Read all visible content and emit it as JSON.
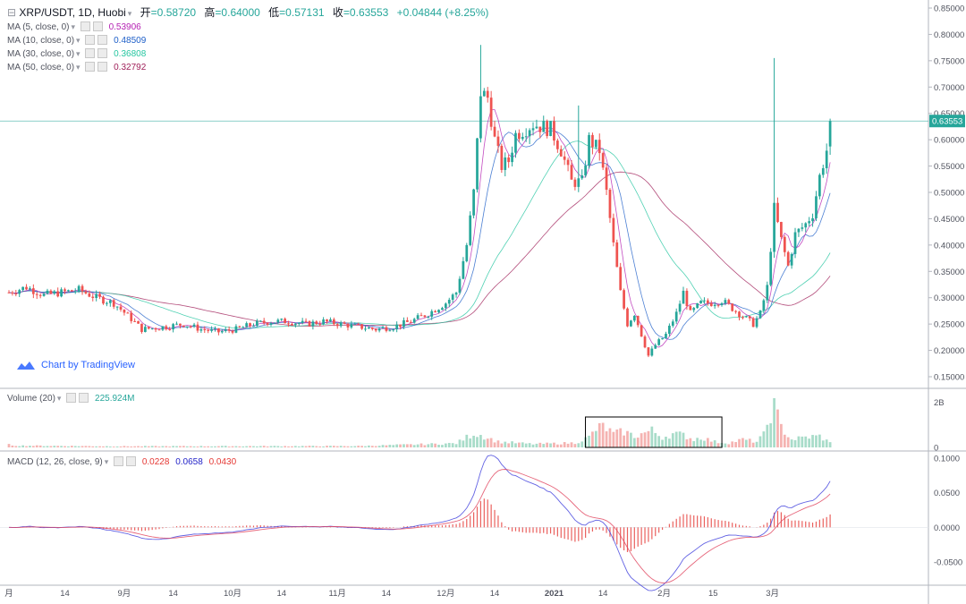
{
  "header": {
    "symbol": "XRP/USDT, 1D, Huobi",
    "open_label": "开",
    "open": "=0.58720",
    "high_label": "高",
    "high": "=0.64000",
    "low_label": "低",
    "low": "=0.57131",
    "close_label": "收",
    "close": "=0.63553",
    "change": "+0.04844 (+8.25%)"
  },
  "ma_legend": [
    {
      "label": "MA (5, close, 0)",
      "value": "0.53906",
      "color": "#b41fb2"
    },
    {
      "label": "MA (10, close, 0)",
      "value": "0.48509",
      "color": "#1e5fc8"
    },
    {
      "label": "MA (30, close, 0)",
      "value": "0.36808",
      "color": "#26c6a0"
    },
    {
      "label": "MA (50, close, 0)",
      "value": "0.32792",
      "color": "#a0205a"
    }
  ],
  "volume_legend": {
    "label": "Volume (20)",
    "value": "225.924M"
  },
  "macd_legend": {
    "label": "MACD (12, 26, close, 9)",
    "hist": "0.0228",
    "macd": "0.0658",
    "signal": "0.0430"
  },
  "branding": "Chart by TradingView",
  "last_price_label": "0.63553",
  "colors": {
    "up": "#26a69a",
    "down": "#ef5350",
    "ma5": "#b41fb2",
    "ma10": "#1e5fc8",
    "ma30": "#26c6a0",
    "ma50": "#a0205a",
    "macd": "#3b3bdc",
    "signal": "#e0405a"
  },
  "chart_data": {
    "type": "candlestick",
    "price_axis_ticks": [
      "0.85000",
      "0.80000",
      "0.75000",
      "0.70000",
      "0.65000",
      "0.60000",
      "0.55000",
      "0.50000",
      "0.45000",
      "0.40000",
      "0.35000",
      "0.30000",
      "0.25000",
      "0.20000",
      "0.15000"
    ],
    "price_range": [
      0.15,
      0.85
    ],
    "volume_axis_ticks": [
      "2B",
      "0"
    ],
    "macd_axis_ticks": [
      "0.1000",
      "0.0500",
      "0.0000",
      "-0.0500"
    ],
    "macd_range": [
      -0.065,
      0.105
    ],
    "x_ticks": [
      "月",
      "14",
      "9月",
      "14",
      "10月",
      "14",
      "11月",
      "14",
      "12月",
      "14",
      "2021",
      "14",
      "2月",
      "15",
      "3月"
    ],
    "price_anchors": [
      [
        0,
        0.31
      ],
      [
        5,
        0.32
      ],
      [
        10,
        0.305
      ],
      [
        15,
        0.31
      ],
      [
        20,
        0.315
      ],
      [
        25,
        0.3
      ],
      [
        30,
        0.29
      ],
      [
        35,
        0.26
      ],
      [
        38,
        0.24
      ],
      [
        45,
        0.245
      ],
      [
        50,
        0.25
      ],
      [
        55,
        0.24
      ],
      [
        60,
        0.235
      ],
      [
        65,
        0.24
      ],
      [
        70,
        0.25
      ],
      [
        75,
        0.255
      ],
      [
        80,
        0.255
      ],
      [
        85,
        0.25
      ],
      [
        90,
        0.255
      ],
      [
        95,
        0.25
      ],
      [
        100,
        0.245
      ],
      [
        105,
        0.24
      ],
      [
        110,
        0.245
      ],
      [
        115,
        0.255
      ],
      [
        120,
        0.27
      ],
      [
        125,
        0.29
      ],
      [
        128,
        0.31
      ],
      [
        131,
        0.4
      ],
      [
        133,
        0.5
      ],
      [
        135,
        0.69
      ],
      [
        137,
        0.68
      ],
      [
        139,
        0.6
      ],
      [
        141,
        0.55
      ],
      [
        143,
        0.56
      ],
      [
        145,
        0.61
      ],
      [
        150,
        0.63
      ],
      [
        155,
        0.62
      ],
      [
        158,
        0.58
      ],
      [
        161,
        0.52
      ],
      [
        164,
        0.52
      ],
      [
        166,
        0.6
      ],
      [
        169,
        0.58
      ],
      [
        171,
        0.5
      ],
      [
        173,
        0.4
      ],
      [
        175,
        0.31
      ],
      [
        177,
        0.25
      ],
      [
        179,
        0.27
      ],
      [
        181,
        0.23
      ],
      [
        183,
        0.19
      ],
      [
        185,
        0.21
      ],
      [
        188,
        0.23
      ],
      [
        191,
        0.27
      ],
      [
        193,
        0.31
      ],
      [
        195,
        0.27
      ],
      [
        198,
        0.29
      ],
      [
        201,
        0.29
      ],
      [
        204,
        0.295
      ],
      [
        207,
        0.28
      ],
      [
        210,
        0.265
      ],
      [
        213,
        0.25
      ],
      [
        215,
        0.27
      ],
      [
        217,
        0.32
      ],
      [
        219,
        0.47
      ],
      [
        221,
        0.41
      ],
      [
        223,
        0.36
      ],
      [
        225,
        0.42
      ],
      [
        228,
        0.44
      ],
      [
        230,
        0.46
      ],
      [
        232,
        0.53
      ],
      [
        234,
        0.58
      ],
      [
        235,
        0.6355
      ]
    ],
    "price_spikes": [
      {
        "i": 135,
        "high": 0.78
      },
      {
        "i": 163,
        "high": 0.665
      },
      {
        "i": 219,
        "high": 0.755
      }
    ],
    "volume_anchors": [
      [
        0,
        0.12
      ],
      [
        2,
        0.08
      ],
      [
        30,
        0.05
      ],
      [
        100,
        0.06
      ],
      [
        128,
        0.18
      ],
      [
        131,
        0.45
      ],
      [
        133,
        0.62
      ],
      [
        135,
        0.55
      ],
      [
        140,
        0.25
      ],
      [
        150,
        0.15
      ],
      [
        162,
        0.2
      ],
      [
        166,
        0.45
      ],
      [
        168,
        0.8
      ],
      [
        170,
        0.95
      ],
      [
        173,
        0.6
      ],
      [
        176,
        0.7
      ],
      [
        179,
        0.5
      ],
      [
        184,
        0.75
      ],
      [
        187,
        0.45
      ],
      [
        190,
        0.6
      ],
      [
        193,
        0.55
      ],
      [
        196,
        0.35
      ],
      [
        198,
        0.45
      ],
      [
        202,
        0.25
      ],
      [
        206,
        0.2
      ],
      [
        210,
        0.35
      ],
      [
        214,
        0.25
      ],
      [
        216,
        0.55
      ],
      [
        218,
        1.5
      ],
      [
        219,
        1.8
      ],
      [
        221,
        0.9
      ],
      [
        224,
        0.35
      ],
      [
        228,
        0.45
      ],
      [
        232,
        0.5
      ],
      [
        235,
        0.2
      ]
    ],
    "volume_ymax": 2.3
  }
}
